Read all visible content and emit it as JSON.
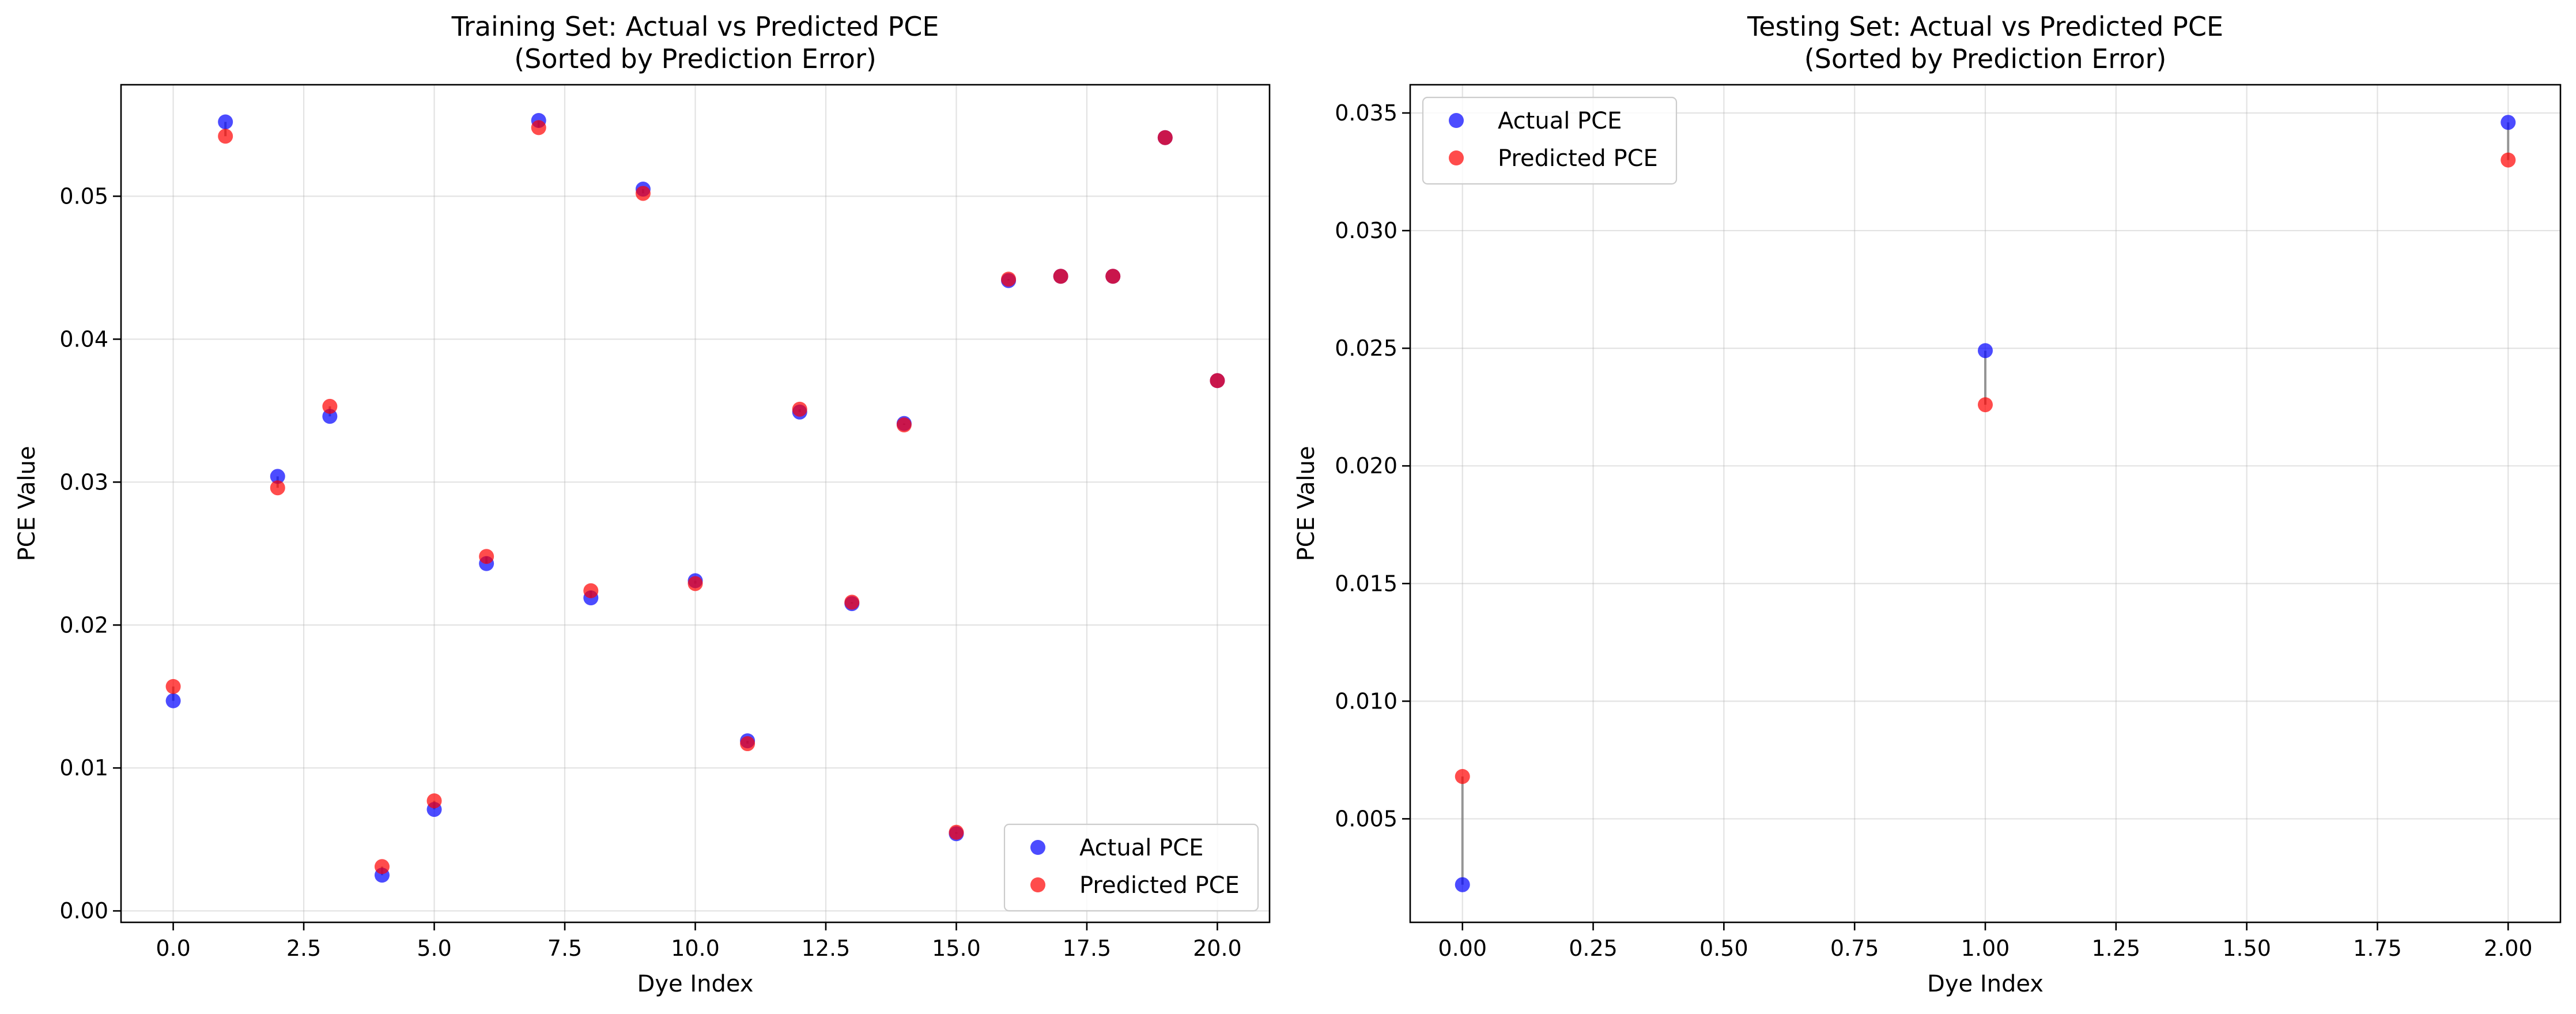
{
  "chart_data": [
    {
      "type": "scatter",
      "title": "Training Set: Actual vs Predicted PCE\n(Sorted by Prediction Error)",
      "xlabel": "Dye Index",
      "ylabel": "PCE Value",
      "xlim": [
        -1.0,
        21.0
      ],
      "ylim": [
        -0.0008,
        0.0578
      ],
      "xticks": [
        0.0,
        2.5,
        5.0,
        7.5,
        10.0,
        12.5,
        15.0,
        17.5,
        20.0
      ],
      "xtick_labels": [
        "0.0",
        "2.5",
        "5.0",
        "7.5",
        "10.0",
        "12.5",
        "15.0",
        "17.5",
        "20.0"
      ],
      "yticks": [
        0.0,
        0.01,
        0.02,
        0.03,
        0.04,
        0.05
      ],
      "ytick_labels": [
        "0.00",
        "0.01",
        "0.02",
        "0.03",
        "0.04",
        "0.05"
      ],
      "grid": true,
      "legend_position": "lower-right",
      "x": [
        0,
        1,
        2,
        3,
        4,
        5,
        6,
        7,
        8,
        9,
        10,
        11,
        12,
        13,
        14,
        15,
        16,
        17,
        18,
        19,
        20
      ],
      "series": [
        {
          "name": "Actual PCE",
          "color": "#0000ff",
          "values": [
            0.0147,
            0.0552,
            0.0304,
            0.0346,
            0.0025,
            0.0071,
            0.0243,
            0.0553,
            0.0219,
            0.0505,
            0.0231,
            0.0119,
            0.0349,
            0.0215,
            0.0341,
            0.0054,
            0.0441,
            0.0444,
            0.0444,
            0.0541,
            0.0371
          ]
        },
        {
          "name": "Predicted PCE",
          "color": "#ff0000",
          "values": [
            0.0157,
            0.0542,
            0.0296,
            0.0353,
            0.0031,
            0.0077,
            0.0248,
            0.0548,
            0.0224,
            0.0502,
            0.0229,
            0.0117,
            0.0351,
            0.0216,
            0.034,
            0.0055,
            0.0442,
            0.0444,
            0.0444,
            0.0541,
            0.0371
          ]
        }
      ]
    },
    {
      "type": "scatter",
      "title": "Testing Set: Actual vs Predicted PCE\n(Sorted by Prediction Error)",
      "xlabel": "Dye Index",
      "ylabel": "PCE Value",
      "xlim": [
        -0.1,
        2.1
      ],
      "ylim": [
        0.0006,
        0.0362
      ],
      "xticks": [
        0.0,
        0.25,
        0.5,
        0.75,
        1.0,
        1.25,
        1.5,
        1.75,
        2.0
      ],
      "xtick_labels": [
        "0.00",
        "0.25",
        "0.50",
        "0.75",
        "1.00",
        "1.25",
        "1.50",
        "1.75",
        "2.00"
      ],
      "yticks": [
        0.005,
        0.01,
        0.015,
        0.02,
        0.025,
        0.03,
        0.035
      ],
      "ytick_labels": [
        "0.005",
        "0.010",
        "0.015",
        "0.020",
        "0.025",
        "0.030",
        "0.035"
      ],
      "grid": true,
      "legend_position": "upper-left",
      "x": [
        0,
        1,
        2
      ],
      "series": [
        {
          "name": "Actual PCE",
          "color": "#0000ff",
          "values": [
            0.0022,
            0.0249,
            0.0346
          ]
        },
        {
          "name": "Predicted PCE",
          "color": "#ff0000",
          "values": [
            0.0068,
            0.0226,
            0.033
          ]
        }
      ]
    }
  ]
}
